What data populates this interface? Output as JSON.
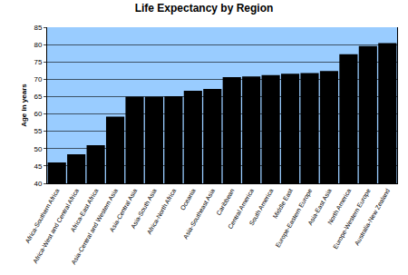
{
  "chart_data": {
    "type": "bar",
    "title": "Life Expectancy by Region",
    "y_label": "Age in years",
    "categories": [
      "Africa-Southern Africa",
      "Africa-West and Central Africa",
      "Africa-East Africa",
      "Asia-Central and Western Asia",
      "Asia-Central Asia",
      "Asia-South Asia",
      "Africa-North Africa",
      "Oceania",
      "Asia-Southeast Asia",
      "Caribbean",
      "Central America",
      "South America",
      "Middle East",
      "Europe-Eastern Europe",
      "Asia-East Asia",
      "North America",
      "Europe-Western Europe",
      "Australia-New Zealand"
    ],
    "values": [
      46,
      48.4,
      51,
      59.2,
      65,
      65,
      65.1,
      66.7,
      67.2,
      70.6,
      70.8,
      71.2,
      71.6,
      71.8,
      72.4,
      77.2,
      79.6,
      80.4
    ],
    "color": "#000000",
    "ylim": [
      40,
      85
    ],
    "yticks": [
      40,
      45,
      50,
      55,
      60,
      65,
      70,
      75,
      80,
      85
    ],
    "grid": true
  }
}
